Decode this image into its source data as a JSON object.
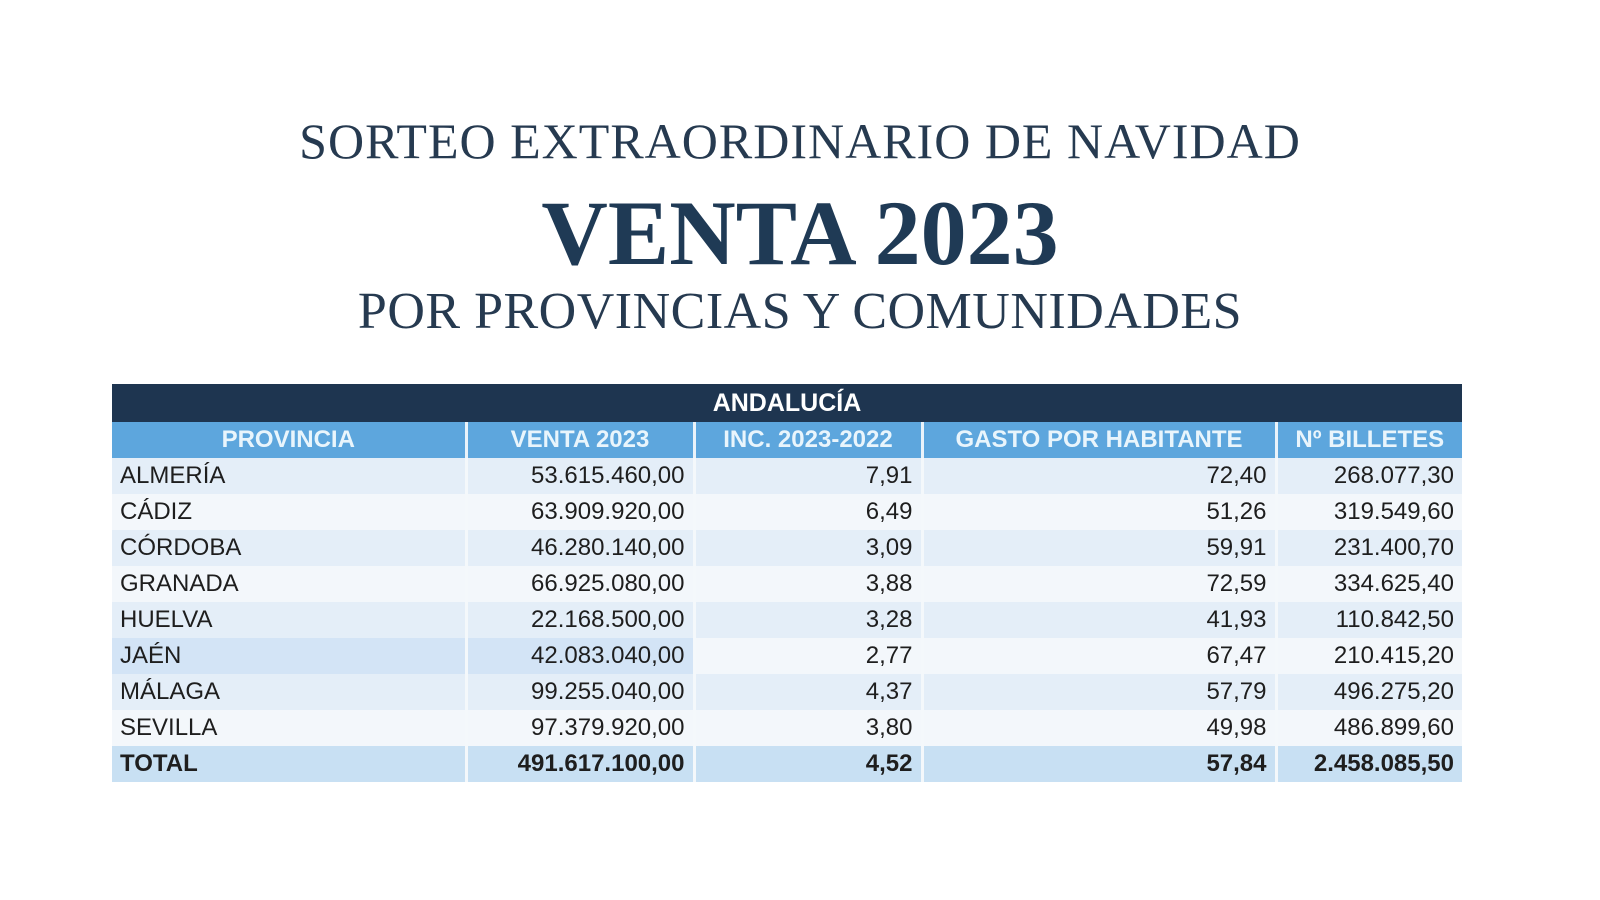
{
  "title": {
    "line1": "SORTEO EXTRAORDINARIO DE NAVIDAD",
    "line2": "VENTA 2023",
    "line3": "POR PROVINCIAS Y COMUNIDADES"
  },
  "table": {
    "region": "ANDALUCÍA",
    "columns": [
      "PROVINCIA",
      "VENTA 2023",
      "INC. 2023-2022",
      "GASTO POR HABITANTE",
      "Nº BILLETES"
    ],
    "rows": [
      [
        "ALMERÍA",
        "53.615.460,00",
        "7,91",
        "72,40",
        "268.077,30"
      ],
      [
        "CÁDIZ",
        "63.909.920,00",
        "6,49",
        "51,26",
        "319.549,60"
      ],
      [
        "CÓRDOBA",
        "46.280.140,00",
        "3,09",
        "59,91",
        "231.400,70"
      ],
      [
        "GRANADA",
        "66.925.080,00",
        "3,88",
        "72,59",
        "334.625,40"
      ],
      [
        "HUELVA",
        "22.168.500,00",
        "3,28",
        "41,93",
        "110.842,50"
      ],
      [
        "JAÉN",
        "42.083.040,00",
        "2,77",
        "67,47",
        "210.415,20"
      ],
      [
        "MÁLAGA",
        "99.255.040,00",
        "4,37",
        "57,79",
        "496.275,20"
      ],
      [
        "SEVILLA",
        "97.379.920,00",
        "3,80",
        "49,98",
        "486.899,60"
      ]
    ],
    "total": [
      "TOTAL",
      "491.617.100,00",
      "4,52",
      "57,84",
      "2.458.085,50"
    ]
  }
}
